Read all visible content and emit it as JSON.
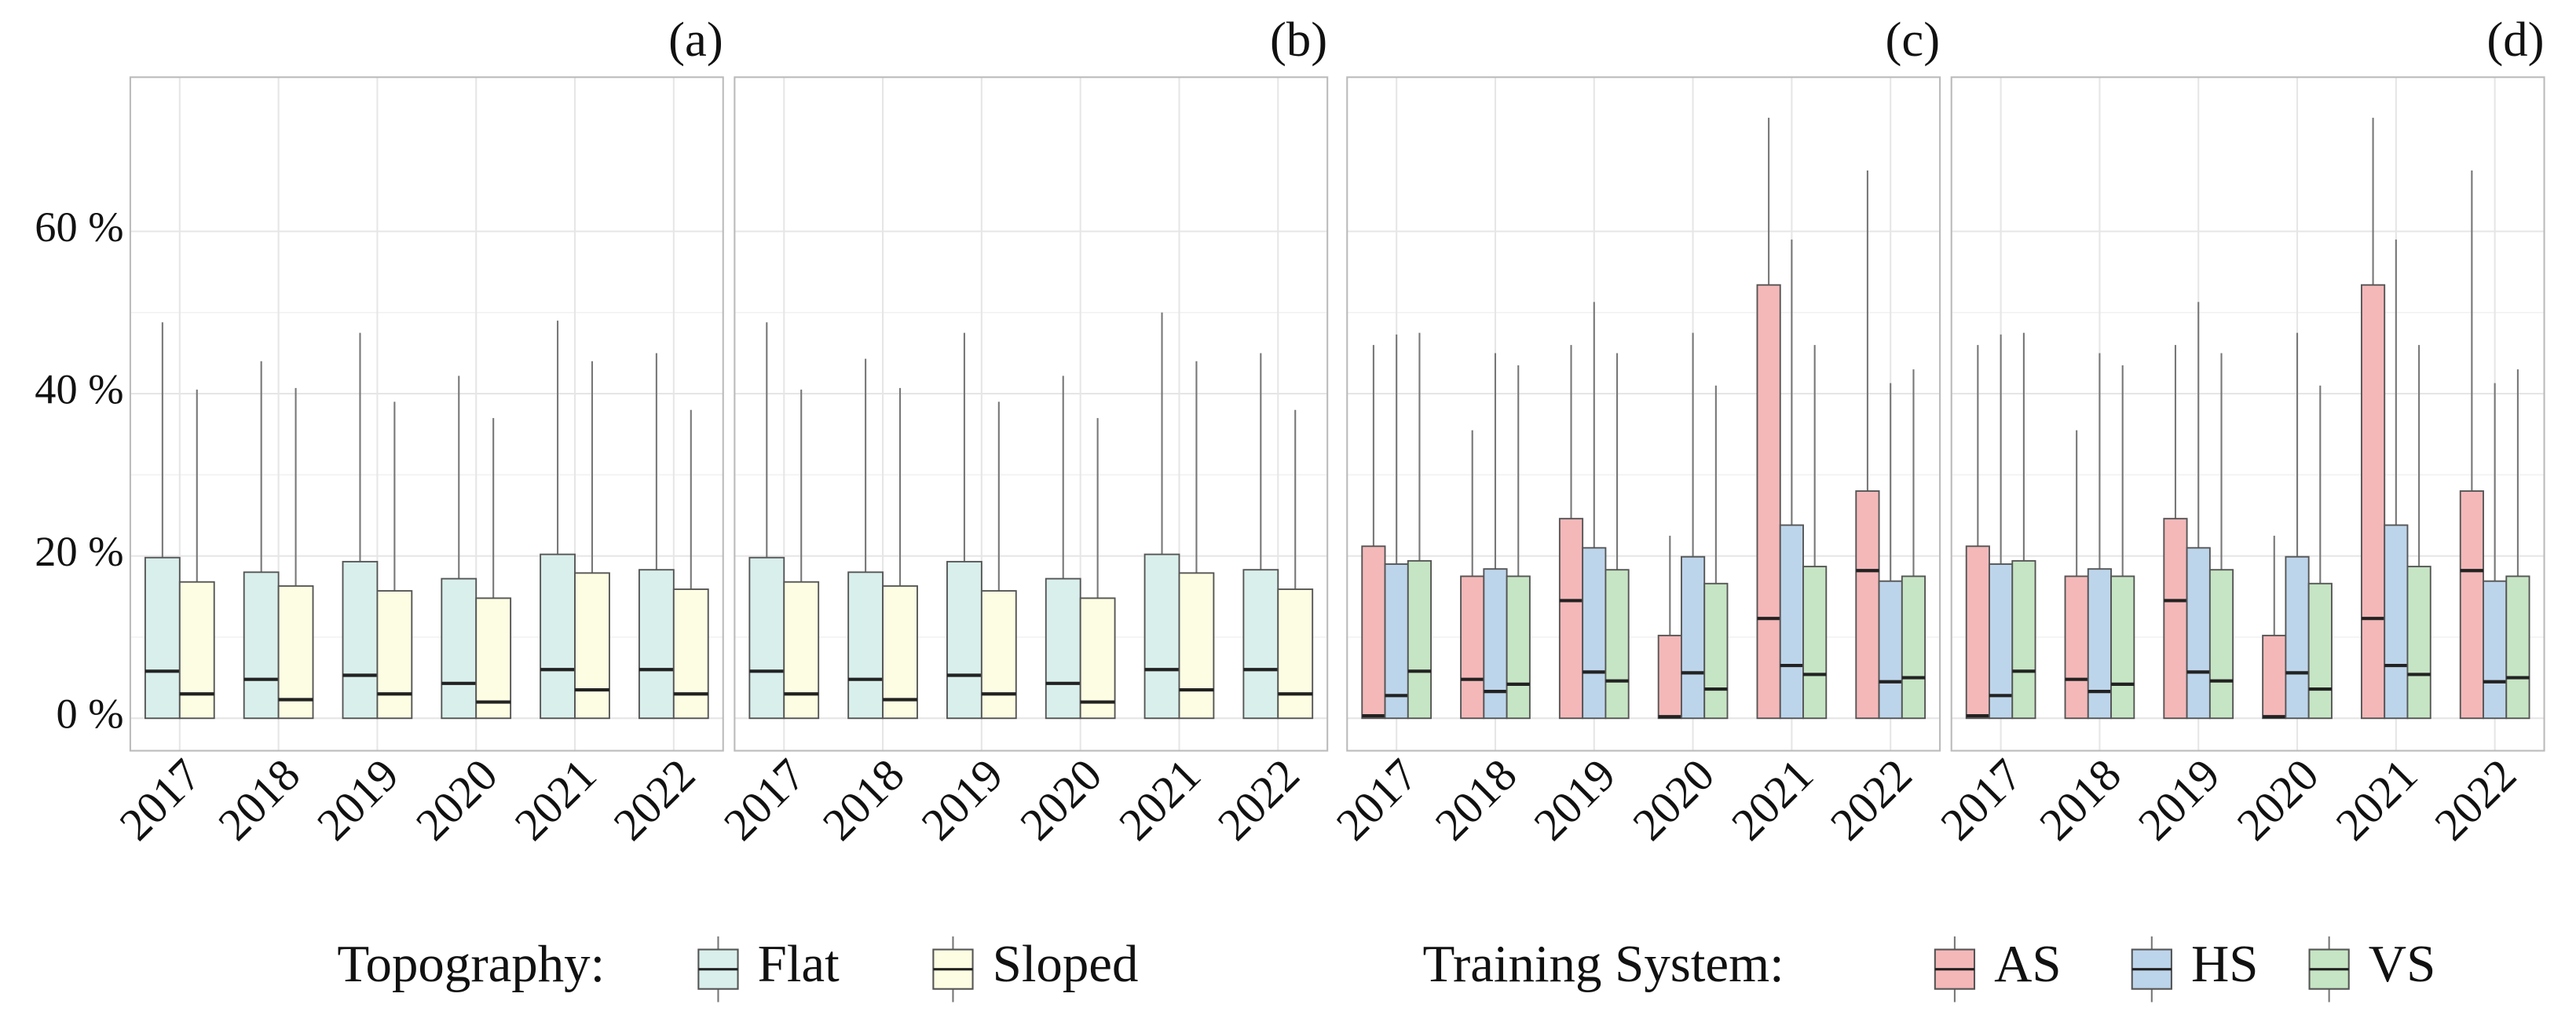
{
  "chart_data": [
    {
      "type": "box",
      "legend_title": "Topography:",
      "categories": [
        "2017",
        "2018",
        "2019",
        "2020",
        "2021",
        "2022"
      ],
      "series": [
        {
          "name": "Flat",
          "color": "#d9efec"
        },
        {
          "name": "Sloped",
          "color": "#fdfde3"
        }
      ],
      "ylim": [
        -4,
        79
      ],
      "yticks": [
        {
          "value": 0,
          "label": "0 %"
        },
        {
          "value": 20,
          "label": "20 %"
        },
        {
          "value": 40,
          "label": "40 %"
        },
        {
          "value": 60,
          "label": "60 %"
        }
      ],
      "panels": [
        {
          "label": "(a)",
          "boxes": [
            {
              "min": [
                0,
                0,
                0,
                0,
                0,
                0
              ],
              "q1": [
                0,
                0,
                0,
                0,
                0,
                0
              ],
              "median": [
                5.8,
                4.8,
                5.3,
                4.3,
                6.0,
                6.0
              ],
              "q3": [
                19.8,
                18.0,
                19.3,
                17.2,
                20.2,
                18.3
              ],
              "max": [
                48.8,
                44.0,
                47.5,
                42.2,
                49.0,
                45.0
              ]
            },
            {
              "min": [
                0,
                0,
                0,
                0,
                0,
                0
              ],
              "q1": [
                0,
                0,
                0,
                0,
                0,
                0
              ],
              "median": [
                3.0,
                2.3,
                3.0,
                2.0,
                3.5,
                3.0
              ],
              "q3": [
                16.8,
                16.3,
                15.7,
                14.8,
                17.9,
                15.9
              ],
              "max": [
                40.5,
                40.7,
                39.0,
                37.0,
                44.0,
                38.0
              ]
            }
          ]
        },
        {
          "label": "(b)",
          "boxes": [
            {
              "min": [
                0,
                0,
                0,
                0,
                0,
                0
              ],
              "q1": [
                0,
                0,
                0,
                0,
                0,
                0
              ],
              "median": [
                5.8,
                4.8,
                5.3,
                4.3,
                6.0,
                6.0
              ],
              "q3": [
                19.8,
                18.0,
                19.3,
                17.2,
                20.2,
                18.3
              ],
              "max": [
                48.8,
                44.3,
                47.5,
                42.2,
                50.0,
                45.0
              ]
            },
            {
              "min": [
                0,
                0,
                0,
                0,
                0,
                0
              ],
              "q1": [
                0,
                0,
                0,
                0,
                0,
                0
              ],
              "median": [
                3.0,
                2.3,
                3.0,
                2.0,
                3.5,
                3.0
              ],
              "q3": [
                16.8,
                16.3,
                15.7,
                14.8,
                17.9,
                15.9
              ],
              "max": [
                40.5,
                40.7,
                39.0,
                37.0,
                44.0,
                38.0
              ]
            }
          ]
        }
      ]
    },
    {
      "type": "box",
      "legend_title": "Training System:",
      "categories": [
        "2017",
        "2018",
        "2019",
        "2020",
        "2021",
        "2022"
      ],
      "series": [
        {
          "name": "AS",
          "color": "#f4b8b9"
        },
        {
          "name": "HS",
          "color": "#bdd5eb"
        },
        {
          "name": "VS",
          "color": "#c6e5c4"
        }
      ],
      "ylim": [
        -4,
        79
      ],
      "yticks": [
        {
          "value": 0,
          "label": "0 %"
        },
        {
          "value": 20,
          "label": "20 %"
        },
        {
          "value": 40,
          "label": "40 %"
        },
        {
          "value": 60,
          "label": "60 %"
        }
      ],
      "panels": [
        {
          "label": "(c)",
          "boxes": [
            {
              "min": [
                0,
                0,
                0,
                0,
                0,
                0
              ],
              "q1": [
                0,
                0,
                0,
                0,
                0,
                0
              ],
              "median": [
                0.3,
                4.8,
                14.5,
                0.2,
                12.3,
                18.2
              ],
              "q3": [
                21.2,
                17.5,
                24.6,
                10.2,
                53.4,
                28.0
              ],
              "max": [
                46.0,
                35.5,
                46.0,
                22.5,
                74.0,
                67.5
              ]
            },
            {
              "min": [
                0,
                0,
                0,
                0,
                0,
                0
              ],
              "q1": [
                0,
                0,
                0,
                0,
                0,
                0
              ],
              "median": [
                2.8,
                3.3,
                5.7,
                5.6,
                6.5,
                4.5
              ],
              "q3": [
                19.0,
                18.4,
                21.0,
                19.9,
                23.8,
                16.9
              ],
              "max": [
                47.3,
                45.0,
                51.3,
                47.5,
                59.0,
                41.3
              ]
            },
            {
              "min": [
                0,
                0,
                0,
                0,
                0,
                0
              ],
              "q1": [
                0,
                0,
                0,
                0,
                0,
                0
              ],
              "median": [
                5.8,
                4.2,
                4.6,
                3.6,
                5.4,
                5.0
              ],
              "q3": [
                19.4,
                17.5,
                18.3,
                16.6,
                18.7,
                17.5
              ],
              "max": [
                47.5,
                43.5,
                45.0,
                41.0,
                46.0,
                43.0
              ]
            }
          ]
        },
        {
          "label": "(d)",
          "boxes": [
            {
              "min": [
                0,
                0,
                0,
                0,
                0,
                0
              ],
              "q1": [
                0,
                0,
                0,
                0,
                0,
                0
              ],
              "median": [
                0.3,
                4.8,
                14.5,
                0.2,
                12.3,
                18.2
              ],
              "q3": [
                21.2,
                17.5,
                24.6,
                10.2,
                53.4,
                28.0
              ],
              "max": [
                46.0,
                35.5,
                46.0,
                22.5,
                74.0,
                67.5
              ]
            },
            {
              "min": [
                0,
                0,
                0,
                0,
                0,
                0
              ],
              "q1": [
                0,
                0,
                0,
                0,
                0,
                0
              ],
              "median": [
                2.8,
                3.3,
                5.7,
                5.6,
                6.5,
                4.5
              ],
              "q3": [
                19.0,
                18.4,
                21.0,
                19.9,
                23.8,
                16.9
              ],
              "max": [
                47.3,
                45.0,
                51.3,
                47.5,
                59.0,
                41.3
              ]
            },
            {
              "min": [
                0,
                0,
                0,
                0,
                0,
                0
              ],
              "q1": [
                0,
                0,
                0,
                0,
                0,
                0
              ],
              "median": [
                5.8,
                4.2,
                4.6,
                3.6,
                5.4,
                5.0
              ],
              "q3": [
                19.4,
                17.5,
                18.3,
                16.6,
                18.7,
                17.5
              ],
              "max": [
                47.5,
                43.5,
                45.0,
                41.0,
                46.0,
                43.0
              ]
            }
          ]
        }
      ]
    }
  ]
}
